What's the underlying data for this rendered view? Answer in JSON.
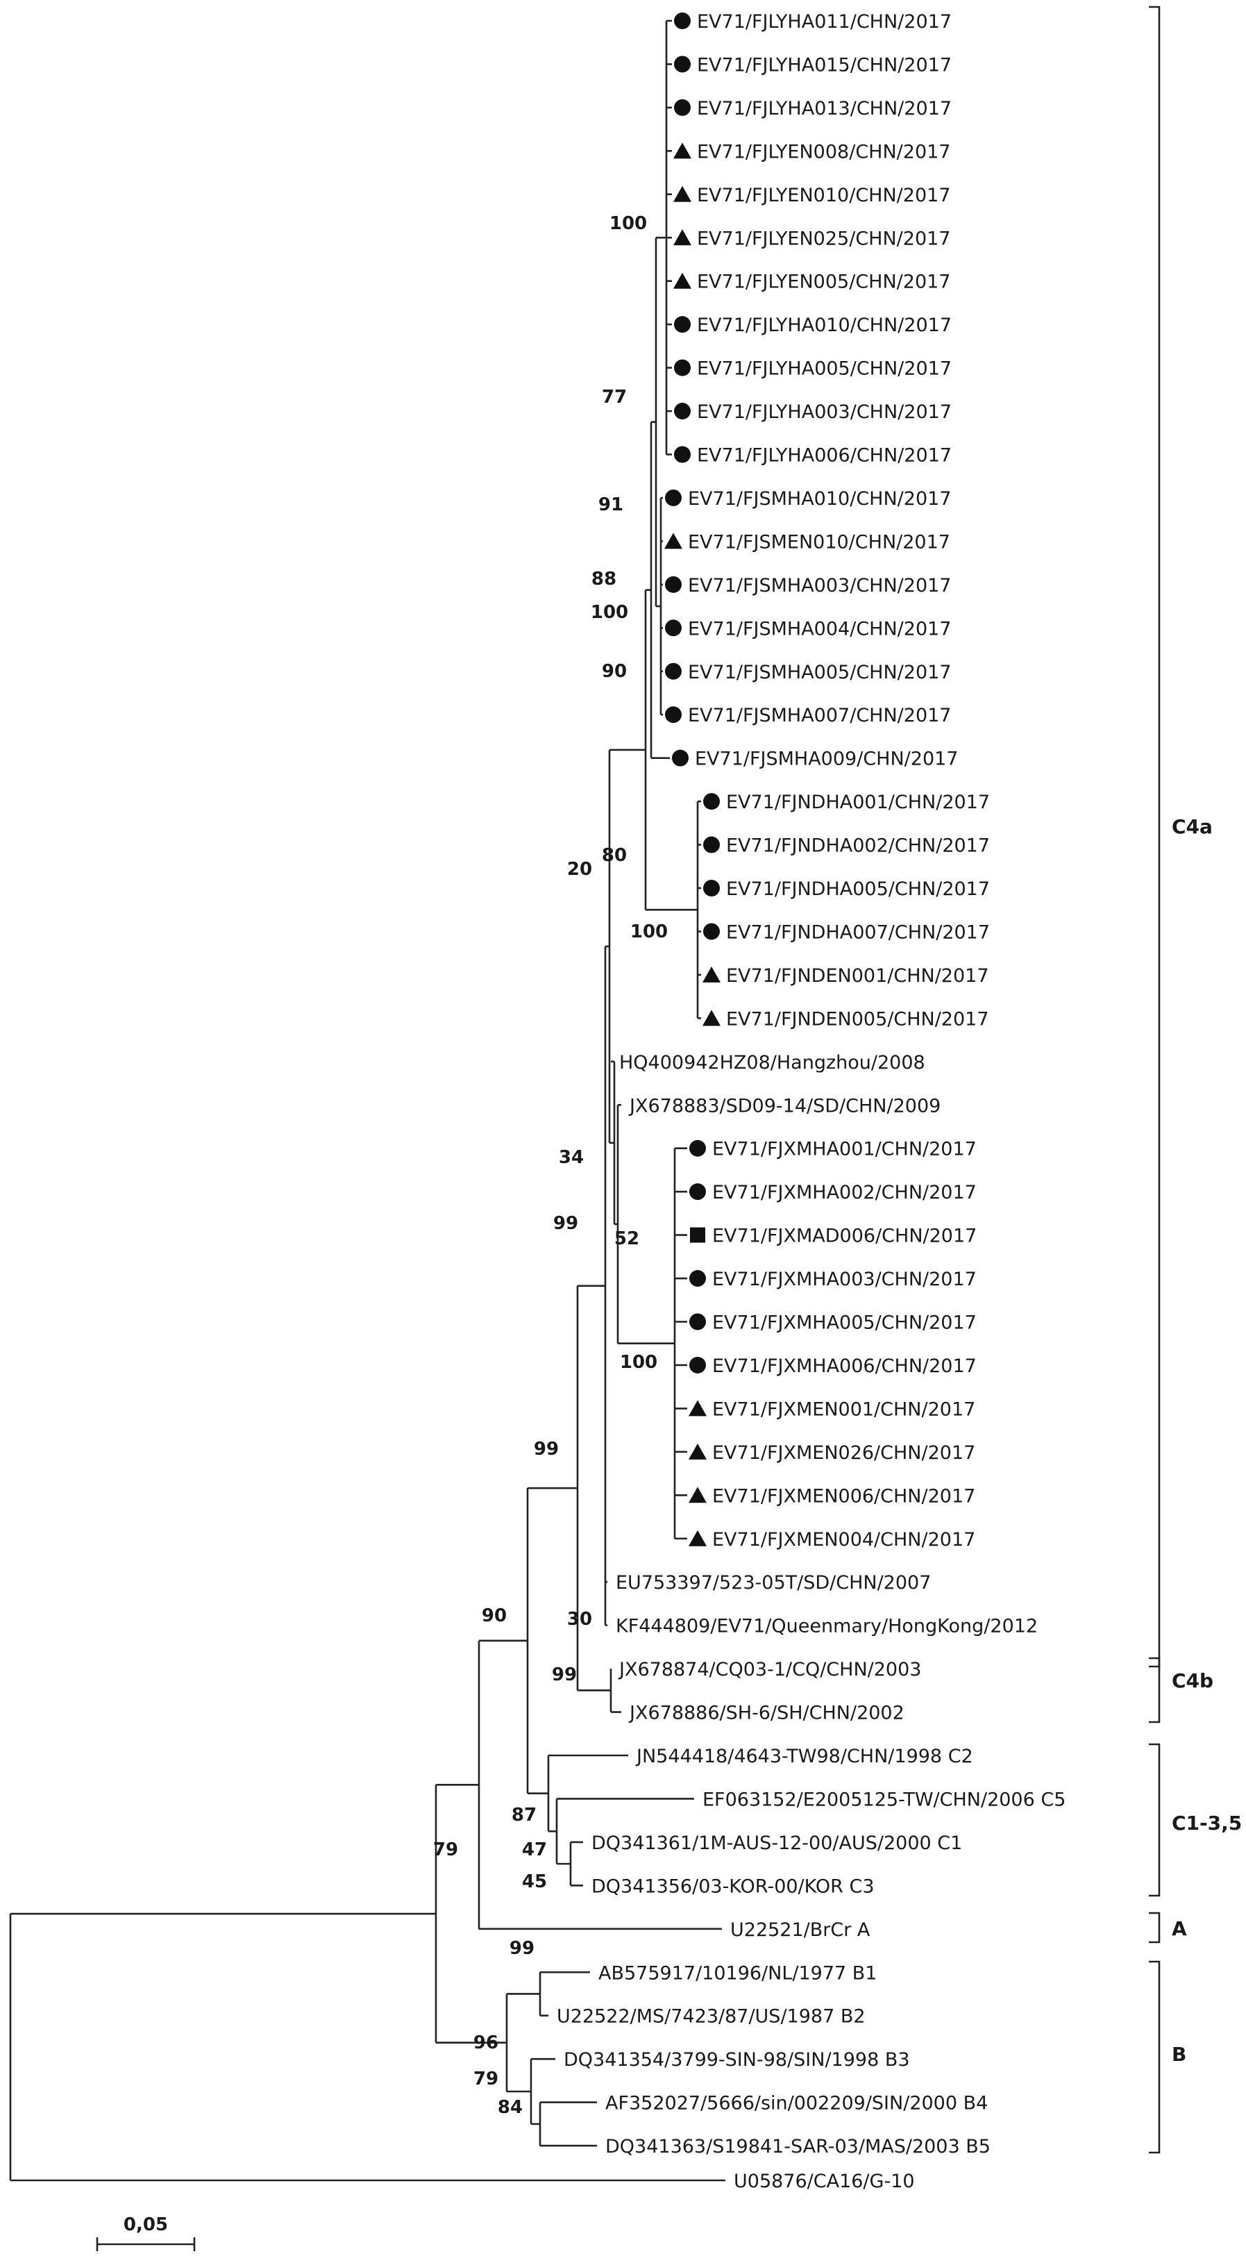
{
  "chart_data": {
    "type": "phylogenetic-tree",
    "scale_bar": {
      "value": 0.05,
      "label": "0,05"
    },
    "marker_types": [
      "circle",
      "triangle",
      "square"
    ],
    "tips": [
      {
        "label": "EV71/FJLYHA011/CHN/2017",
        "marker": "circle"
      },
      {
        "label": "EV71/FJLYHA015/CHN/2017",
        "marker": "circle"
      },
      {
        "label": "EV71/FJLYHA013/CHN/2017",
        "marker": "circle"
      },
      {
        "label": "EV71/FJLYEN008/CHN/2017",
        "marker": "triangle"
      },
      {
        "label": "EV71/FJLYEN010/CHN/2017",
        "marker": "triangle"
      },
      {
        "label": "EV71/FJLYEN025/CHN/2017",
        "marker": "triangle"
      },
      {
        "label": "EV71/FJLYEN005/CHN/2017",
        "marker": "triangle"
      },
      {
        "label": "EV71/FJLYHA010/CHN/2017",
        "marker": "circle"
      },
      {
        "label": "EV71/FJLYHA005/CHN/2017",
        "marker": "circle"
      },
      {
        "label": "EV71/FJLYHA003/CHN/2017",
        "marker": "circle"
      },
      {
        "label": "EV71/FJLYHA006/CHN/2017",
        "marker": "circle"
      },
      {
        "label": "EV71/FJSMHA010/CHN/2017",
        "marker": "circle"
      },
      {
        "label": "EV71/FJSMEN010/CHN/2017",
        "marker": "triangle"
      },
      {
        "label": "EV71/FJSMHA003/CHN/2017",
        "marker": "circle"
      },
      {
        "label": "EV71/FJSMHA004/CHN/2017",
        "marker": "circle"
      },
      {
        "label": "EV71/FJSMHA005/CHN/2017",
        "marker": "circle"
      },
      {
        "label": "EV71/FJSMHA007/CHN/2017",
        "marker": "circle"
      },
      {
        "label": "EV71/FJSMHA009/CHN/2017",
        "marker": "circle"
      },
      {
        "label": "EV71/FJNDHA001/CHN/2017",
        "marker": "circle"
      },
      {
        "label": "EV71/FJNDHA002/CHN/2017",
        "marker": "circle"
      },
      {
        "label": "EV71/FJNDHA005/CHN/2017",
        "marker": "circle"
      },
      {
        "label": "EV71/FJNDHA007/CHN/2017",
        "marker": "circle"
      },
      {
        "label": "EV71/FJNDEN001/CHN/2017",
        "marker": "triangle"
      },
      {
        "label": "EV71/FJNDEN005/CHN/2017",
        "marker": "triangle"
      },
      {
        "label": "HQ400942HZ08/Hangzhou/2008",
        "marker": ""
      },
      {
        "label": "JX678883/SD09-14/SD/CHN/2009",
        "marker": ""
      },
      {
        "label": "EV71/FJXMHA001/CHN/2017",
        "marker": "circle"
      },
      {
        "label": "EV71/FJXMHA002/CHN/2017",
        "marker": "circle"
      },
      {
        "label": "EV71/FJXMAD006/CHN/2017",
        "marker": "square"
      },
      {
        "label": "EV71/FJXMHA003/CHN/2017",
        "marker": "circle"
      },
      {
        "label": "EV71/FJXMHA005/CHN/2017",
        "marker": "circle"
      },
      {
        "label": "EV71/FJXMHA006/CHN/2017",
        "marker": "circle"
      },
      {
        "label": "EV71/FJXMEN001/CHN/2017",
        "marker": "triangle"
      },
      {
        "label": "EV71/FJXMEN026/CHN/2017",
        "marker": "triangle"
      },
      {
        "label": "EV71/FJXMEN006/CHN/2017",
        "marker": "triangle"
      },
      {
        "label": "EV71/FJXMEN004/CHN/2017",
        "marker": "triangle"
      },
      {
        "label": "EU753397/523-05T/SD/CHN/2007",
        "marker": ""
      },
      {
        "label": "KF444809/EV71/Queenmary/HongKong/2012",
        "marker": ""
      },
      {
        "label": "JX678874/CQ03-1/CQ/CHN/2003",
        "marker": ""
      },
      {
        "label": "JX678886/SH-6/SH/CHN/2002",
        "marker": ""
      },
      {
        "label": "JN544418/4643-TW98/CHN/1998 C2",
        "marker": ""
      },
      {
        "label": "EF063152/E2005125-TW/CHN/2006 C5",
        "marker": ""
      },
      {
        "label": "DQ341361/1M-AUS-12-00/AUS/2000 C1",
        "marker": ""
      },
      {
        "label": "DQ341356/03-KOR-00/KOR C3",
        "marker": ""
      },
      {
        "label": "U22521/BrCr A",
        "marker": ""
      },
      {
        "label": "AB575917/10196/NL/1977 B1",
        "marker": ""
      },
      {
        "label": "U22522/MS/7423/87/US/1987 B2",
        "marker": ""
      },
      {
        "label": "DQ341354/3799-SIN-98/SIN/1998 B3",
        "marker": ""
      },
      {
        "label": "AF352027/5666/sin/002209/SIN/2000 B4",
        "marker": ""
      },
      {
        "label": "DQ341363/S19841-SAR-03/MAS/2003 B5",
        "marker": ""
      },
      {
        "label": "U05876/CA16/G-10",
        "marker": ""
      }
    ],
    "bootstrap_values": [
      "100",
      "77",
      "91",
      "88",
      "100",
      "90",
      "20",
      "80",
      "100",
      "34",
      "99",
      "52",
      "100",
      "99",
      "90",
      "30",
      "99",
      "79",
      "87",
      "47",
      "45",
      "99",
      "96",
      "79",
      "84"
    ],
    "clades": [
      "C4a",
      "C4b",
      "C1-3,5",
      "A",
      "B"
    ]
  }
}
